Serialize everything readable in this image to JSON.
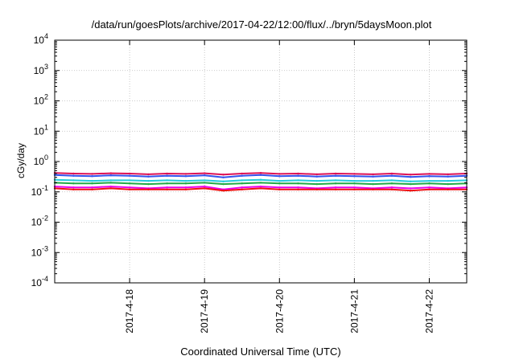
{
  "chart_data": {
    "type": "line",
    "title": "/data/run/goesPlots/archive/2017-04-22/12:00/flux/../bryn/5daysMoon.plot",
    "xlabel": "Coordinated Universal Time (UTC)",
    "ylabel": "cGy/day",
    "yscale": "log",
    "ylim": [
      0.0001,
      10000
    ],
    "xlim": [
      "2017-04-17T00:00",
      "2017-04-22T12:00"
    ],
    "grid": true,
    "legend": "none",
    "x_ticks": [
      "2017-4-18",
      "2017-4-19",
      "2017-4-20",
      "2017-4-21",
      "2017-4-22"
    ],
    "y_ticks": [
      {
        "mantissa": "10",
        "exp": "-4"
      },
      {
        "mantissa": "10",
        "exp": "-3"
      },
      {
        "mantissa": "10",
        "exp": "-2"
      },
      {
        "mantissa": "10",
        "exp": "-1"
      },
      {
        "mantissa": "10",
        "exp": "0"
      },
      {
        "mantissa": "10",
        "exp": "1"
      },
      {
        "mantissa": "10",
        "exp": "2"
      },
      {
        "mantissa": "10",
        "exp": "3"
      },
      {
        "mantissa": "10",
        "exp": "4"
      }
    ],
    "x": [
      "2017-04-17T00:00",
      "2017-04-17T06:00",
      "2017-04-17T12:00",
      "2017-04-17T18:00",
      "2017-04-18T00:00",
      "2017-04-18T06:00",
      "2017-04-18T12:00",
      "2017-04-18T18:00",
      "2017-04-19T00:00",
      "2017-04-19T06:00",
      "2017-04-19T12:00",
      "2017-04-19T18:00",
      "2017-04-20T00:00",
      "2017-04-20T06:00",
      "2017-04-20T12:00",
      "2017-04-20T18:00",
      "2017-04-21T00:00",
      "2017-04-21T06:00",
      "2017-04-21T12:00",
      "2017-04-21T18:00",
      "2017-04-22T00:00",
      "2017-04-22T06:00",
      "2017-04-22T12:00"
    ],
    "series": [
      {
        "color": "#dd1155",
        "values": [
          0.42,
          0.4,
          0.39,
          0.41,
          0.4,
          0.38,
          0.4,
          0.39,
          0.41,
          0.37,
          0.4,
          0.42,
          0.39,
          0.4,
          0.38,
          0.4,
          0.39,
          0.38,
          0.4,
          0.37,
          0.39,
          0.38,
          0.4
        ]
      },
      {
        "color": "#3355ee",
        "values": [
          0.36,
          0.34,
          0.33,
          0.35,
          0.34,
          0.32,
          0.34,
          0.33,
          0.35,
          0.3,
          0.34,
          0.36,
          0.33,
          0.34,
          0.32,
          0.34,
          0.33,
          0.32,
          0.34,
          0.31,
          0.33,
          0.32,
          0.34
        ]
      },
      {
        "color": "#22ccdd",
        "values": [
          0.25,
          0.24,
          0.23,
          0.24,
          0.24,
          0.23,
          0.24,
          0.23,
          0.24,
          0.22,
          0.24,
          0.25,
          0.23,
          0.24,
          0.23,
          0.24,
          0.23,
          0.23,
          0.24,
          0.22,
          0.23,
          0.23,
          0.24
        ]
      },
      {
        "color": "#22aa44",
        "values": [
          0.2,
          0.19,
          0.19,
          0.2,
          0.19,
          0.18,
          0.19,
          0.19,
          0.2,
          0.18,
          0.19,
          0.2,
          0.19,
          0.19,
          0.18,
          0.19,
          0.19,
          0.18,
          0.19,
          0.18,
          0.19,
          0.18,
          0.19
        ]
      },
      {
        "color": "#ee00ee",
        "values": [
          0.15,
          0.14,
          0.14,
          0.15,
          0.14,
          0.13,
          0.14,
          0.14,
          0.15,
          0.12,
          0.14,
          0.15,
          0.14,
          0.14,
          0.13,
          0.14,
          0.14,
          0.13,
          0.14,
          0.13,
          0.14,
          0.13,
          0.14
        ]
      },
      {
        "color": "#ee1111",
        "values": [
          0.13,
          0.12,
          0.12,
          0.13,
          0.12,
          0.12,
          0.12,
          0.12,
          0.13,
          0.11,
          0.12,
          0.13,
          0.12,
          0.12,
          0.12,
          0.12,
          0.12,
          0.12,
          0.12,
          0.11,
          0.12,
          0.12,
          0.12
        ]
      }
    ]
  }
}
